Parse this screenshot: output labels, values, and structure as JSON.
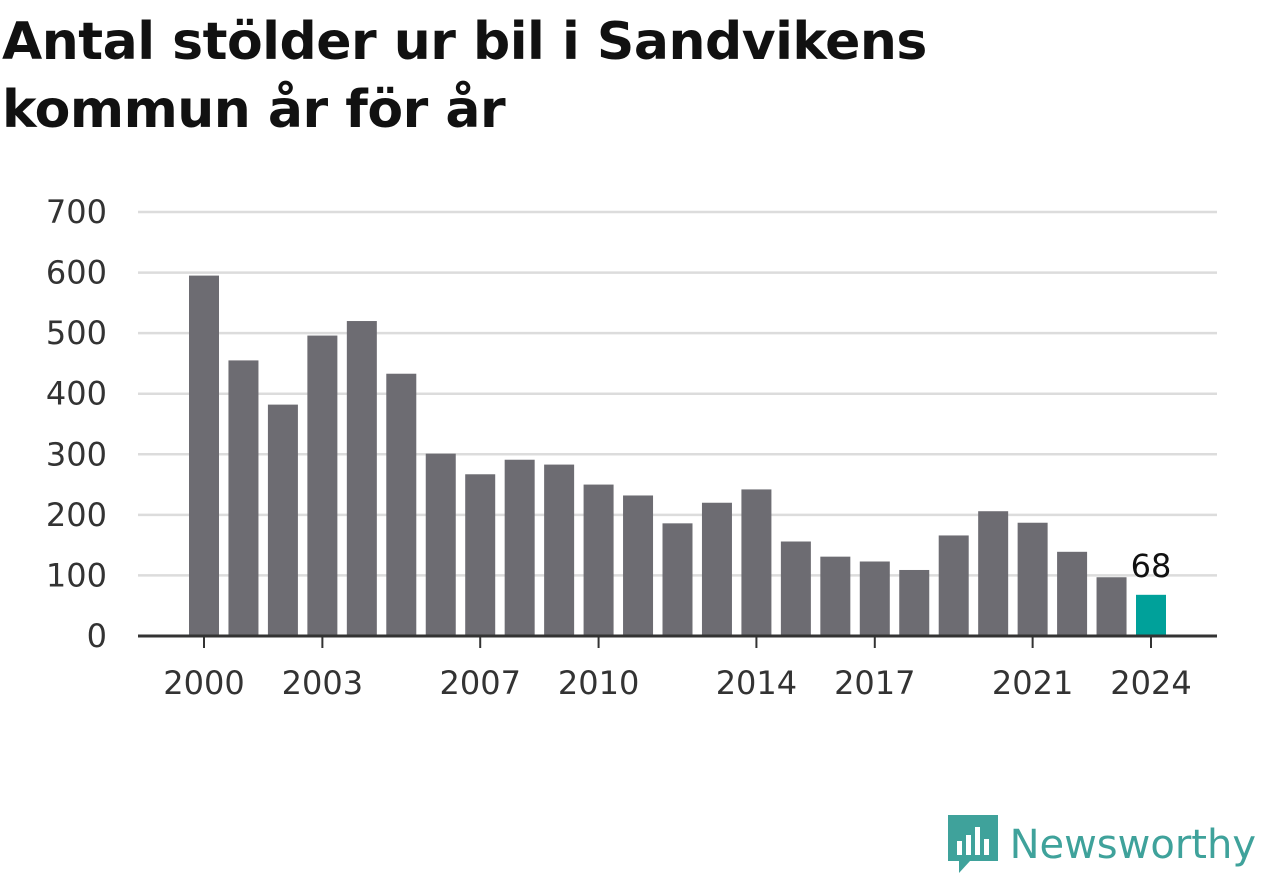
{
  "title": "Antal stölder ur bil i Sandvikens kommun år för år",
  "brand": {
    "name": "Newsworthy",
    "color": "#3fa29b"
  },
  "colors": {
    "bar": "#6d6c72",
    "highlight": "#00a19a",
    "grid": "#dcdcdc",
    "axis": "#333333"
  },
  "chart_data": {
    "type": "bar",
    "title": "Antal stölder ur bil i Sandvikens kommun år för år",
    "categories": [
      "2000",
      "2001",
      "2002",
      "2003",
      "2004",
      "2005",
      "2006",
      "2007",
      "2008",
      "2009",
      "2010",
      "2011",
      "2012",
      "2013",
      "2014",
      "2015",
      "2016",
      "2017",
      "2018",
      "2019",
      "2020",
      "2021",
      "2022",
      "2023",
      "2024"
    ],
    "values": [
      595,
      455,
      382,
      496,
      520,
      433,
      301,
      267,
      291,
      283,
      250,
      232,
      186,
      220,
      242,
      156,
      131,
      123,
      109,
      166,
      206,
      187,
      139,
      97,
      68
    ],
    "highlight_category": "2024",
    "data_labels": [
      {
        "category": "2024",
        "text": "68"
      }
    ],
    "x_tick_labels": [
      "2000",
      "2003",
      "2007",
      "2010",
      "2014",
      "2017",
      "2021",
      "2024"
    ],
    "y_ticks": [
      0,
      100,
      200,
      300,
      400,
      500,
      600,
      700
    ],
    "ylim": [
      0,
      700
    ],
    "xlabel": "",
    "ylabel": "",
    "grid": true,
    "legend": "none"
  }
}
